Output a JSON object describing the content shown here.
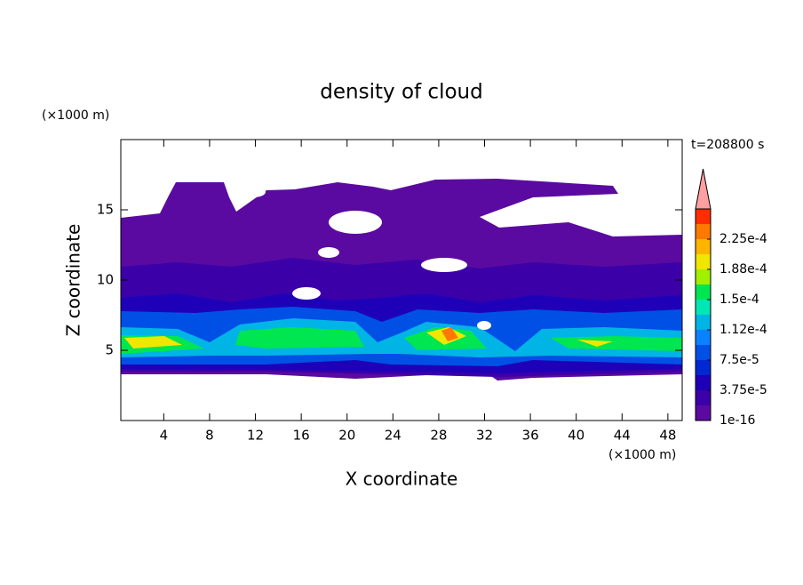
{
  "chart_data": {
    "type": "contour",
    "title": "density of cloud",
    "x_label": "X coordinate",
    "y_label": "Z coordinate",
    "x_unit": "(×1000 m)",
    "y_unit": "(×1000 m)",
    "annotation": "t=208800 s",
    "xlim": [
      0.25,
      49.25
    ],
    "ylim": [
      0,
      20
    ],
    "xticks": [
      4,
      8,
      12,
      16,
      20,
      24,
      28,
      32,
      36,
      40,
      44,
      48
    ],
    "yticks": [
      5,
      10,
      15
    ],
    "colorbar": {
      "levels": [
        1e-16,
        1.875e-05,
        3.75e-05,
        5.625e-05,
        7.5e-05,
        9.375e-05,
        0.0001125,
        0.00013125,
        0.00015,
        0.00016875,
        0.0001875,
        0.00020625,
        0.000225
      ],
      "ticks": [
        {
          "value": 1e-16,
          "label": "1e-16"
        },
        {
          "value": 3.75e-05,
          "label": "3.75e-5"
        },
        {
          "value": 7.5e-05,
          "label": "7.5e-5"
        },
        {
          "value": 0.0001125,
          "label": "1.12e-4"
        },
        {
          "value": 0.00015,
          "label": "1.5e-4"
        },
        {
          "value": 0.0001875,
          "label": "1.88e-4"
        },
        {
          "value": 0.000225,
          "label": "2.25e-4"
        }
      ],
      "colors": [
        "#5a0aa0",
        "#3c00a8",
        "#1e00b8",
        "#0028d2",
        "#0050e6",
        "#0a82ff",
        "#00b4e6",
        "#00e6b4",
        "#00e650",
        "#a0f000",
        "#f0e600",
        "#ffb400",
        "#ff7800",
        "#ff2d00"
      ],
      "extend_color": "#ffa0a0"
    }
  }
}
